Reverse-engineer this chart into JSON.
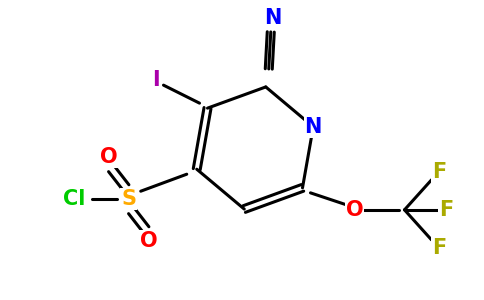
{
  "background_color": "#ffffff",
  "atom_colors": {
    "N": "#0000ff",
    "O": "#ff0000",
    "S": "#ffaa00",
    "Cl": "#00cc00",
    "I": "#aa00aa",
    "F": "#aaaa00",
    "C": "#000000"
  },
  "bond_color": "#000000",
  "bond_width": 2.2,
  "font_size": 15
}
